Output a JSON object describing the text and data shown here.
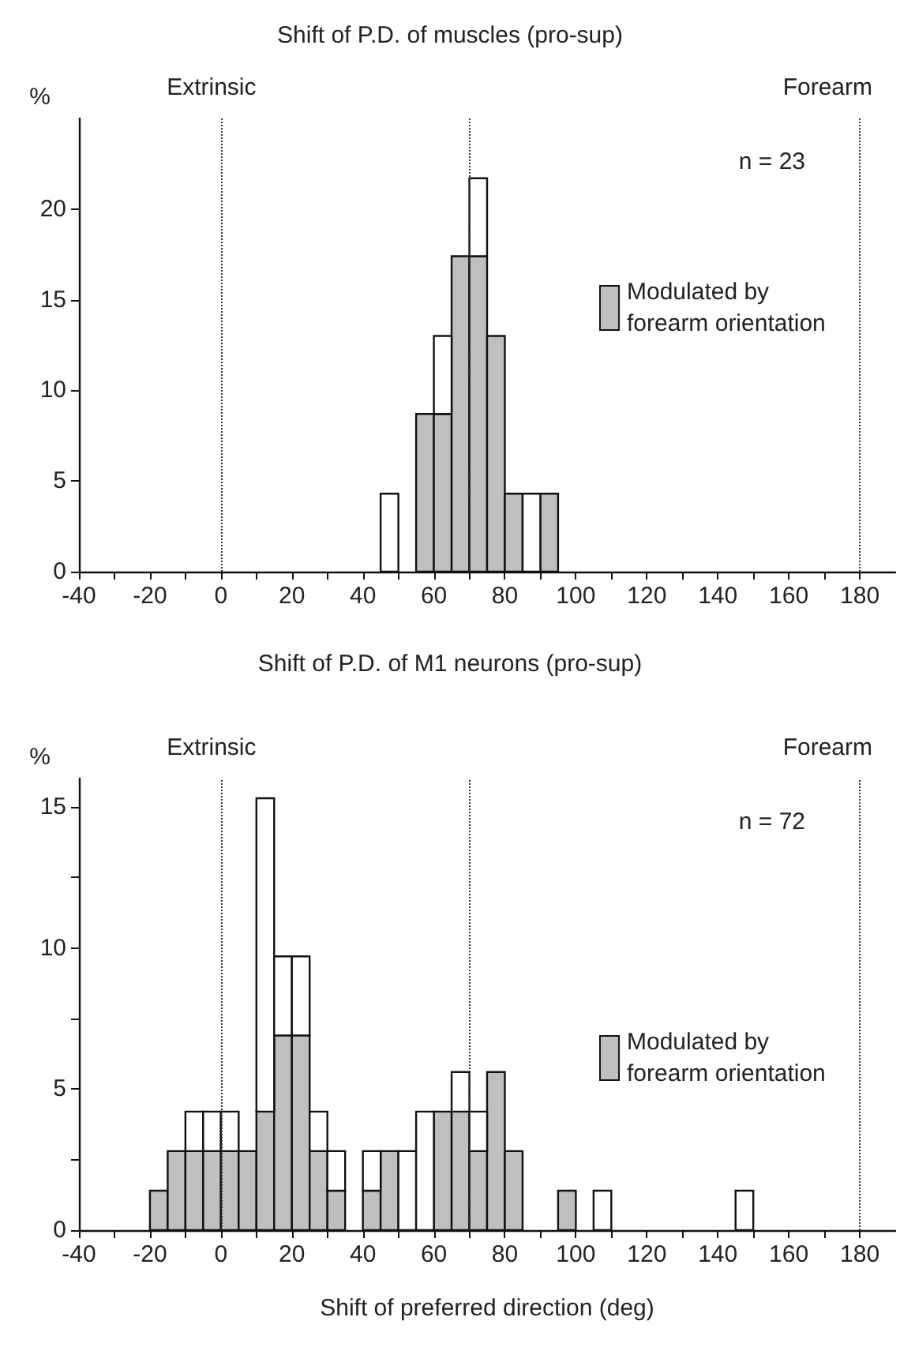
{
  "chart_data": [
    {
      "type": "bar",
      "stacked": true,
      "title": "Shift of P.D. of muscles (pro-sup)",
      "ylabel": "%",
      "annotations": [
        "n = 23"
      ],
      "x": [
        47.5,
        52.5,
        57.5,
        62.5,
        67.5,
        72.5,
        77.5,
        82.5,
        87.5,
        92.5
      ],
      "series": [
        {
          "name": "Modulated by forearm orientation",
          "color": "#bebfc1",
          "values": [
            0,
            0,
            8.7,
            8.7,
            17.4,
            17.4,
            13.0,
            4.3,
            0,
            4.3
          ]
        },
        {
          "color": "#ffffff",
          "values": [
            4.3,
            0,
            0,
            4.3,
            0,
            4.3,
            0,
            0,
            4.3,
            0
          ]
        }
      ],
      "xlim": [
        -40,
        190
      ],
      "xticks": [
        -40,
        {
          "value": -30,
          "label": null
        },
        -20,
        {
          "value": -10,
          "label": null
        },
        0,
        {
          "value": 10,
          "label": null
        },
        20,
        {
          "value": 30,
          "label": null
        },
        40,
        {
          "value": 50,
          "label": null
        },
        60,
        {
          "value": 70,
          "label": null
        },
        80,
        {
          "value": 90,
          "label": null
        },
        100,
        {
          "value": 110,
          "label": null
        },
        120,
        {
          "value": 130,
          "label": null
        },
        140,
        {
          "value": 150,
          "label": null
        },
        160,
        {
          "value": 170,
          "label": null
        },
        180
      ],
      "ylim": [
        0,
        25
      ],
      "yticks": [
        0,
        5,
        10,
        15,
        20
      ],
      "ref_lines": [
        {
          "axis": "x",
          "value": 0,
          "label": "Extrinsic",
          "line_style": "dotted"
        },
        {
          "axis": "x",
          "value": 70,
          "label": null,
          "line_style": "dotted"
        },
        {
          "axis": "x",
          "value": 180,
          "label": "Forearm",
          "line_style": "dotted"
        }
      ],
      "grid": false,
      "legend": "right"
    },
    {
      "type": "bar",
      "stacked": true,
      "title": "Shift of P.D. of M1 neurons (pro-sup)",
      "xlabel": "Shift of preferred direction (deg)",
      "ylabel": "%",
      "annotations": [
        "n = 72"
      ],
      "x": [
        -17.5,
        -12.5,
        -7.5,
        -2.5,
        2.5,
        7.5,
        12.5,
        17.5,
        22.5,
        27.5,
        32.5,
        37.5,
        42.5,
        47.5,
        52.5,
        57.5,
        62.5,
        67.5,
        72.5,
        77.5,
        82.5,
        87.5,
        92.5,
        97.5,
        102.5,
        107.5,
        112.5,
        117.5,
        122.5,
        127.5,
        132.5,
        137.5,
        142.5,
        147.5
      ],
      "series": [
        {
          "name": "Modulated by forearm orientation",
          "color": "#bebfc1",
          "values": [
            1.4,
            2.8,
            2.8,
            2.8,
            2.8,
            2.8,
            4.2,
            6.9,
            6.9,
            2.8,
            1.4,
            0,
            1.4,
            2.8,
            0,
            0,
            4.2,
            4.2,
            2.8,
            5.6,
            2.8,
            0,
            0,
            1.4,
            0,
            0,
            0,
            0,
            0,
            0,
            0,
            0,
            0,
            0
          ]
        },
        {
          "color": "#ffffff",
          "values": [
            0,
            0,
            1.4,
            1.4,
            1.4,
            0,
            11.1,
            2.8,
            2.8,
            1.4,
            1.4,
            0,
            1.4,
            0,
            2.8,
            4.2,
            0,
            1.4,
            1.4,
            0,
            0,
            0,
            0,
            0,
            0,
            1.4,
            0,
            0,
            0,
            0,
            0,
            0,
            0,
            1.4
          ]
        }
      ],
      "xlim": [
        -40,
        190
      ],
      "xticks": [
        -40,
        {
          "value": -30,
          "label": null
        },
        -20,
        {
          "value": -10,
          "label": null
        },
        0,
        {
          "value": 10,
          "label": null
        },
        20,
        {
          "value": 30,
          "label": null
        },
        40,
        {
          "value": 50,
          "label": null
        },
        60,
        {
          "value": 70,
          "label": null
        },
        80,
        {
          "value": 90,
          "label": null
        },
        100,
        {
          "value": 110,
          "label": null
        },
        120,
        {
          "value": 130,
          "label": null
        },
        140,
        {
          "value": 150,
          "label": null
        },
        160,
        {
          "value": 170,
          "label": null
        },
        180
      ],
      "ylim": [
        0,
        16
      ],
      "yticks": [
        0,
        {
          "value": 2.5,
          "label": null
        },
        5,
        {
          "value": 7.5,
          "label": null
        },
        10,
        {
          "value": 12.5,
          "label": null
        },
        15
      ],
      "ref_lines": [
        {
          "axis": "x",
          "value": 0,
          "label": "Extrinsic",
          "line_style": "dotted"
        },
        {
          "axis": "x",
          "value": 70,
          "label": null,
          "line_style": "dotted"
        },
        {
          "axis": "x",
          "value": 180,
          "label": "Forearm",
          "line_style": "dotted"
        }
      ],
      "grid": false,
      "legend": "right"
    }
  ]
}
